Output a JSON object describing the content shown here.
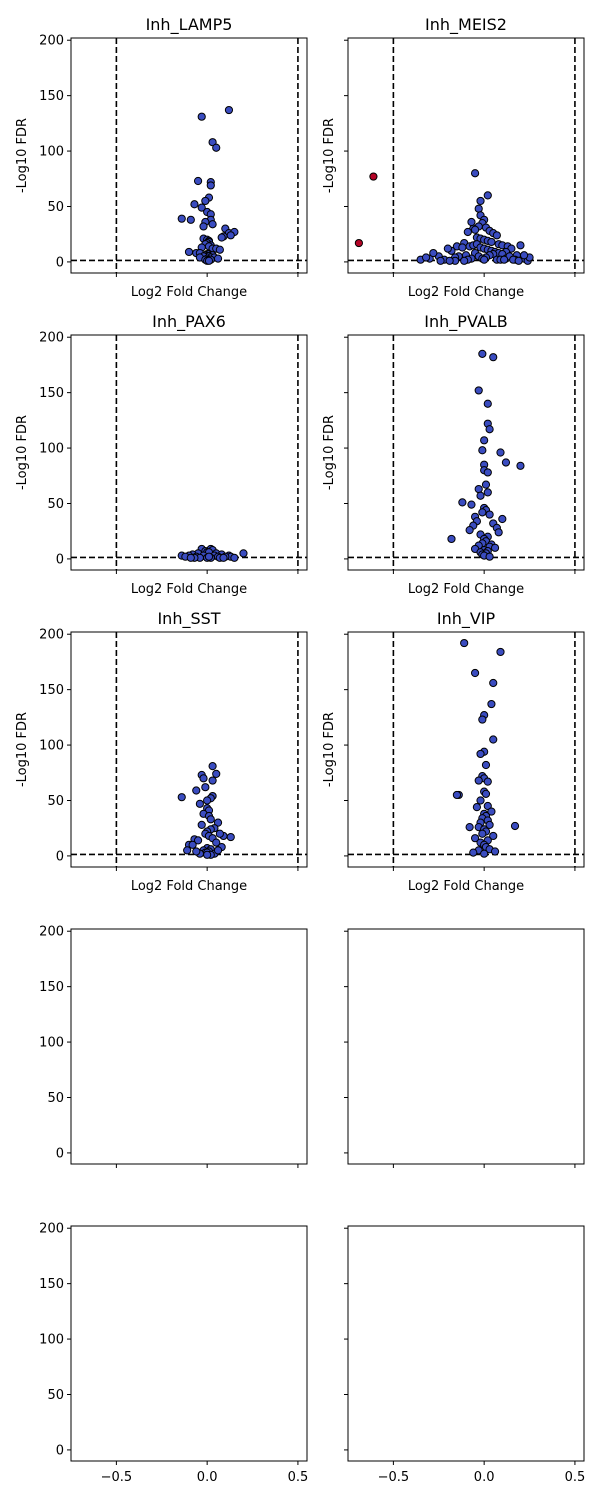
{
  "chart_data": [
    {
      "type": "scatter",
      "title": "Inh_LAMP5",
      "xlabel": "Log2 Fold Change",
      "ylabel": "-Log10 FDR",
      "xlim": [
        -0.75,
        0.55
      ],
      "ylim": [
        -10,
        202
      ],
      "xticks": [
        -0.5,
        0.0,
        0.5
      ],
      "xticklabels": [
        "−0.5",
        "0.0",
        "0.5"
      ],
      "show_xticklabels": false,
      "yticks": [
        0,
        50,
        100,
        150,
        200
      ],
      "yticklabels": [
        "0",
        "50",
        "100",
        "150",
        "200"
      ],
      "show_yticklabels": true,
      "vlines": [
        -0.5,
        0.5
      ],
      "hline": 1.3,
      "colors": {
        "ns": "#3a4cc0",
        "sig": "#b40426",
        "edge": "#000000",
        "line": "#000000"
      },
      "points": {
        "x": [
          0.12,
          -0.03,
          0.03,
          0.05,
          -0.05,
          0.02,
          0.02,
          0.01,
          -0.01,
          -0.07,
          -0.03,
          0.0,
          0.02,
          -0.14,
          -0.09,
          0.02,
          -0.01,
          0.03,
          -0.02,
          0.1,
          0.12,
          0.15,
          0.13,
          0.09,
          0.08,
          -0.02,
          0.0,
          0.01,
          0.01,
          0.0,
          -0.01,
          0.02,
          0.01,
          -0.03,
          0.03,
          0.05,
          0.07,
          -0.1,
          -0.06,
          -0.04,
          0.0,
          0.01,
          0.02,
          -0.01,
          0.03,
          0.0,
          0.01,
          -0.02,
          0.02,
          0.04,
          -0.04,
          0.06,
          0.0,
          0.01,
          -0.01,
          0.02,
          0.0,
          0.01
        ],
        "y": [
          137,
          131,
          108,
          103,
          73,
          72,
          69,
          58,
          55,
          52,
          49,
          45,
          43,
          39,
          38,
          38,
          36,
          34,
          32,
          30,
          26,
          27,
          24,
          23,
          22,
          21,
          20,
          19,
          18,
          17,
          16,
          15,
          14,
          13,
          12,
          12,
          11,
          9,
          8,
          8,
          7,
          7,
          6,
          6,
          6,
          5,
          5,
          5,
          4,
          4,
          4,
          3,
          3,
          2,
          2,
          2,
          1,
          1
        ]
      }
    },
    {
      "type": "scatter",
      "title": "Inh_MEIS2",
      "xlabel": "Log2 Fold Change",
      "ylabel": "-Log10 FDR",
      "xlim": [
        -0.75,
        0.55
      ],
      "ylim": [
        -10,
        202
      ],
      "xticks": [
        -0.5,
        0.0,
        0.5
      ],
      "xticklabels": [
        "−0.5",
        "0.0",
        "0.5"
      ],
      "show_xticklabels": false,
      "yticks": [
        0,
        50,
        100,
        150,
        200
      ],
      "yticklabels": [
        "0",
        "50",
        "100",
        "150",
        "200"
      ],
      "show_yticklabels": false,
      "vlines": [
        -0.5,
        0.5
      ],
      "hline": 1.3,
      "colors": {
        "ns": "#3a4cc0",
        "sig": "#b40426",
        "edge": "#000000",
        "line": "#000000"
      },
      "points": {
        "x": [
          -0.61,
          -0.69,
          -0.05,
          -0.02,
          0.02,
          -0.03,
          -0.02,
          0.0,
          -0.01,
          -0.03,
          -0.06,
          -0.05,
          -0.09,
          -0.07,
          0.01,
          0.03,
          0.05,
          0.07,
          -0.04,
          -0.02,
          0.0,
          0.02,
          0.04,
          -0.11,
          0.08,
          0.1,
          0.13,
          0.2,
          0.22,
          0.24,
          -0.15,
          -0.18,
          -0.2,
          -0.25,
          -0.3,
          -0.35,
          -0.32,
          -0.28,
          -0.22,
          0.15,
          0.18,
          0.17,
          0.12,
          -0.12,
          -0.08,
          -0.06,
          -0.04,
          -0.02,
          0.0,
          0.02,
          0.04,
          0.06,
          0.08,
          0.1,
          -0.1,
          -0.14,
          -0.16,
          0.12,
          0.14,
          0.05,
          -0.05,
          0.03,
          -0.03,
          0.01,
          -0.01,
          0.0,
          0.07,
          -0.07,
          0.09,
          -0.09,
          0.11,
          -0.11,
          0.16,
          -0.16,
          0.19,
          -0.19,
          0.25,
          0.22,
          -0.24
        ],
        "y": [
          77,
          17,
          80,
          55,
          60,
          48,
          42,
          38,
          35,
          32,
          30,
          29,
          27,
          36,
          31,
          28,
          26,
          24,
          22,
          21,
          20,
          19,
          18,
          17,
          16,
          15,
          14,
          15,
          3,
          1,
          14,
          10,
          12,
          5,
          3,
          2,
          4,
          8,
          2,
          12,
          6,
          2,
          9,
          13,
          14,
          15,
          16,
          13,
          12,
          11,
          10,
          9,
          8,
          7,
          6,
          5,
          4,
          3,
          5,
          7,
          8,
          6,
          5,
          4,
          3,
          2,
          2,
          3,
          2,
          2,
          2,
          1,
          2,
          1,
          1,
          1,
          4,
          6,
          1
        ],
        "significant": [
          true,
          true,
          false,
          false,
          false,
          false,
          false,
          false,
          false,
          false,
          false,
          false,
          false,
          false,
          false,
          false,
          false,
          false,
          false,
          false,
          false,
          false,
          false,
          false,
          false,
          false,
          false,
          false,
          false,
          false,
          false,
          false,
          false,
          false,
          false,
          false,
          false,
          false,
          false,
          false,
          false,
          false,
          false,
          false,
          false,
          false,
          false,
          false,
          false,
          false,
          false,
          false,
          false,
          false,
          false,
          false,
          false,
          false,
          false,
          false,
          false,
          false,
          false,
          false,
          false,
          false,
          false,
          false,
          false,
          false,
          false,
          false,
          false,
          false,
          false,
          false,
          false,
          false,
          false
        ]
      }
    },
    {
      "type": "scatter",
      "title": "Inh_PAX6",
      "xlabel": "Log2 Fold Change",
      "ylabel": "-Log10 FDR",
      "xlim": [
        -0.75,
        0.55
      ],
      "ylim": [
        -10,
        202
      ],
      "xticks": [
        -0.5,
        0.0,
        0.5
      ],
      "xticklabels": [
        "−0.5",
        "0.0",
        "0.5"
      ],
      "show_xticklabels": false,
      "yticks": [
        0,
        50,
        100,
        150,
        200
      ],
      "yticklabels": [
        "0",
        "50",
        "100",
        "150",
        "200"
      ],
      "show_yticklabels": true,
      "vlines": [
        -0.5,
        0.5
      ],
      "hline": 1.3,
      "colors": {
        "ns": "#3a4cc0",
        "sig": "#b40426",
        "edge": "#000000",
        "line": "#000000"
      },
      "points": {
        "x": [
          -0.03,
          0.02,
          0.03,
          -0.01,
          0.0,
          0.01,
          -0.05,
          0.05,
          -0.08,
          0.08,
          0.2,
          -0.14,
          -0.1,
          0.12,
          0.13,
          0.1,
          -0.02,
          0.04,
          -0.06,
          0.06,
          -0.04,
          0.02,
          0.0,
          -0.12,
          0.15,
          0.07,
          -0.07,
          0.09,
          -0.09,
          0.01
        ],
        "y": [
          9,
          9,
          8,
          7,
          6,
          6,
          5,
          5,
          4,
          4,
          5,
          3,
          3,
          3,
          2,
          2,
          3,
          3,
          2,
          2,
          1,
          1,
          1,
          2,
          1,
          1,
          1,
          1,
          1,
          2
        ]
      }
    },
    {
      "type": "scatter",
      "title": "Inh_PVALB",
      "xlabel": "Log2 Fold Change",
      "ylabel": "-Log10 FDR",
      "xlim": [
        -0.75,
        0.55
      ],
      "ylim": [
        -10,
        202
      ],
      "xticks": [
        -0.5,
        0.0,
        0.5
      ],
      "xticklabels": [
        "−0.5",
        "0.0",
        "0.5"
      ],
      "show_xticklabels": false,
      "yticks": [
        0,
        50,
        100,
        150,
        200
      ],
      "yticklabels": [
        "0",
        "50",
        "100",
        "150",
        "200"
      ],
      "show_yticklabels": false,
      "vlines": [
        -0.5,
        0.5
      ],
      "hline": 1.3,
      "colors": {
        "ns": "#3a4cc0",
        "sig": "#b40426",
        "edge": "#000000",
        "line": "#000000"
      },
      "points": {
        "x": [
          -0.01,
          0.05,
          -0.03,
          0.02,
          0.02,
          0.03,
          0.0,
          0.09,
          -0.01,
          0.0,
          0.12,
          0.2,
          0.0,
          0.02,
          0.01,
          -0.03,
          -0.12,
          0.02,
          -0.02,
          -0.07,
          0.1,
          -0.05,
          -0.18,
          0.0,
          0.01,
          -0.01,
          0.03,
          -0.04,
          0.05,
          -0.06,
          0.07,
          -0.08,
          0.08,
          -0.02,
          0.02,
          0.0,
          0.01,
          -0.01,
          0.04,
          -0.03,
          0.03,
          0.06,
          -0.05,
          0.0,
          0.02,
          -0.02,
          0.01,
          -0.01,
          0.0,
          0.03
        ],
        "y": [
          185,
          182,
          152,
          140,
          122,
          117,
          107,
          96,
          98,
          85,
          87,
          84,
          80,
          78,
          67,
          63,
          51,
          60,
          57,
          49,
          36,
          38,
          18,
          46,
          44,
          42,
          40,
          34,
          32,
          30,
          28,
          26,
          24,
          22,
          20,
          18,
          16,
          14,
          13,
          12,
          11,
          10,
          9,
          8,
          7,
          6,
          5,
          4,
          3,
          2
        ]
      }
    },
    {
      "type": "scatter",
      "title": "Inh_SST",
      "xlabel": "Log2 Fold Change",
      "ylabel": "-Log10 FDR",
      "xlim": [
        -0.75,
        0.55
      ],
      "ylim": [
        -10,
        202
      ],
      "xticks": [
        -0.5,
        0.0,
        0.5
      ],
      "xticklabels": [
        "−0.5",
        "0.0",
        "0.5"
      ],
      "show_xticklabels": false,
      "yticks": [
        0,
        50,
        100,
        150,
        200
      ],
      "yticklabels": [
        "0",
        "50",
        "100",
        "150",
        "200"
      ],
      "show_yticklabels": true,
      "vlines": [
        -0.5,
        0.5
      ],
      "hline": 1.3,
      "colors": {
        "ns": "#3a4cc0",
        "sig": "#b40426",
        "edge": "#000000",
        "line": "#000000"
      },
      "points": {
        "x": [
          0.03,
          0.05,
          -0.03,
          -0.02,
          0.03,
          -0.01,
          -0.06,
          -0.14,
          0.03,
          0.02,
          0.0,
          -0.04,
          0.0,
          0.01,
          -0.02,
          0.01,
          0.02,
          0.06,
          -0.03,
          0.04,
          0.09,
          0.13,
          0.07,
          -0.07,
          -0.1,
          -0.11,
          0.02,
          0.0,
          -0.01,
          0.01,
          0.03,
          -0.05,
          0.05,
          -0.08,
          0.08,
          0.0,
          0.02,
          -0.02,
          0.01,
          -0.01,
          0.0,
          0.04,
          -0.04,
          0.02,
          -0.06,
          0.06,
          0.0
        ],
        "y": [
          81,
          74,
          73,
          70,
          68,
          62,
          59,
          53,
          54,
          52,
          50,
          47,
          43,
          41,
          38,
          36,
          33,
          30,
          28,
          25,
          18,
          17,
          20,
          15,
          10,
          5,
          24,
          22,
          20,
          18,
          16,
          14,
          12,
          10,
          8,
          7,
          6,
          5,
          4,
          3,
          3,
          2,
          2,
          1,
          4,
          5,
          1
        ]
      }
    },
    {
      "type": "scatter",
      "title": "Inh_VIP",
      "xlabel": "Log2 Fold Change",
      "ylabel": "-Log10 FDR",
      "xlim": [
        -0.75,
        0.55
      ],
      "ylim": [
        -10,
        202
      ],
      "xticks": [
        -0.5,
        0.0,
        0.5
      ],
      "xticklabels": [
        "−0.5",
        "0.0",
        "0.5"
      ],
      "show_xticklabels": false,
      "yticks": [
        0,
        50,
        100,
        150,
        200
      ],
      "yticklabels": [
        "0",
        "50",
        "100",
        "150",
        "200"
      ],
      "show_yticklabels": false,
      "vlines": [
        -0.5,
        0.5
      ],
      "hline": 1.3,
      "colors": {
        "ns": "#3a4cc0",
        "sig": "#b40426",
        "edge": "#000000",
        "line": "#000000"
      },
      "points": {
        "x": [
          -0.11,
          0.09,
          -0.05,
          0.05,
          0.04,
          0.0,
          -0.01,
          0.05,
          0.0,
          -0.02,
          -0.14,
          0.01,
          -0.01,
          0.0,
          -0.03,
          0.02,
          -0.15,
          0.0,
          0.01,
          -0.02,
          0.02,
          0.17,
          -0.08,
          -0.04,
          0.04,
          0.0,
          0.01,
          -0.01,
          0.02,
          -0.02,
          0.03,
          -0.03,
          0.0,
          0.01,
          -0.01,
          0.05,
          -0.05,
          0.02,
          -0.02,
          0.0,
          0.01,
          0.03,
          -0.03,
          0.06,
          -0.06,
          0.0
        ],
        "y": [
          192,
          184,
          165,
          156,
          137,
          127,
          123,
          105,
          94,
          92,
          55,
          82,
          72,
          70,
          68,
          67,
          55,
          58,
          56,
          50,
          45,
          27,
          26,
          44,
          40,
          38,
          36,
          34,
          32,
          30,
          28,
          26,
          24,
          22,
          20,
          18,
          16,
          14,
          12,
          10,
          8,
          6,
          5,
          4,
          3,
          2
        ]
      }
    },
    {
      "type": "scatter",
      "title": "",
      "xlabel": "",
      "ylabel": "",
      "xlim": [
        -0.75,
        0.55
      ],
      "ylim": [
        -10,
        202
      ],
      "xticks": [
        -0.5,
        0.0,
        0.5
      ],
      "xticklabels": [
        "−0.5",
        "0.0",
        "0.5"
      ],
      "show_xticklabels": false,
      "yticks": [
        0,
        50,
        100,
        150,
        200
      ],
      "yticklabels": [
        "0",
        "50",
        "100",
        "150",
        "200"
      ],
      "show_yticklabels": true,
      "vlines": [],
      "hline": null,
      "colors": {
        "ns": "#3a4cc0",
        "sig": "#b40426",
        "edge": "#000000",
        "line": "#000000"
      },
      "points": {
        "x": [],
        "y": []
      }
    },
    {
      "type": "scatter",
      "title": "",
      "xlabel": "",
      "ylabel": "",
      "xlim": [
        -0.75,
        0.55
      ],
      "ylim": [
        -10,
        202
      ],
      "xticks": [
        -0.5,
        0.0,
        0.5
      ],
      "xticklabels": [
        "−0.5",
        "0.0",
        "0.5"
      ],
      "show_xticklabels": false,
      "yticks": [
        0,
        50,
        100,
        150,
        200
      ],
      "yticklabels": [
        "0",
        "50",
        "100",
        "150",
        "200"
      ],
      "show_yticklabels": false,
      "vlines": [],
      "hline": null,
      "colors": {
        "ns": "#3a4cc0",
        "sig": "#b40426",
        "edge": "#000000",
        "line": "#000000"
      },
      "points": {
        "x": [],
        "y": []
      }
    },
    {
      "type": "scatter",
      "title": "",
      "xlabel": "",
      "ylabel": "",
      "xlim": [
        -0.75,
        0.55
      ],
      "ylim": [
        -10,
        202
      ],
      "xticks": [
        -0.5,
        0.0,
        0.5
      ],
      "xticklabels": [
        "−0.5",
        "0.0",
        "0.5"
      ],
      "show_xticklabels": true,
      "yticks": [
        0,
        50,
        100,
        150,
        200
      ],
      "yticklabels": [
        "0",
        "50",
        "100",
        "150",
        "200"
      ],
      "show_yticklabels": true,
      "vlines": [],
      "hline": null,
      "colors": {
        "ns": "#3a4cc0",
        "sig": "#b40426",
        "edge": "#000000",
        "line": "#000000"
      },
      "points": {
        "x": [],
        "y": []
      }
    },
    {
      "type": "scatter",
      "title": "",
      "xlabel": "",
      "ylabel": "",
      "xlim": [
        -0.75,
        0.55
      ],
      "ylim": [
        -10,
        202
      ],
      "xticks": [
        -0.5,
        0.0,
        0.5
      ],
      "xticklabels": [
        "−0.5",
        "0.0",
        "0.5"
      ],
      "show_xticklabels": true,
      "yticks": [
        0,
        50,
        100,
        150,
        200
      ],
      "yticklabels": [
        "0",
        "50",
        "100",
        "150",
        "200"
      ],
      "show_yticklabels": false,
      "vlines": [],
      "hline": null,
      "colors": {
        "ns": "#3a4cc0",
        "sig": "#b40426",
        "edge": "#000000",
        "line": "#000000"
      },
      "points": {
        "x": [],
        "y": []
      }
    }
  ]
}
